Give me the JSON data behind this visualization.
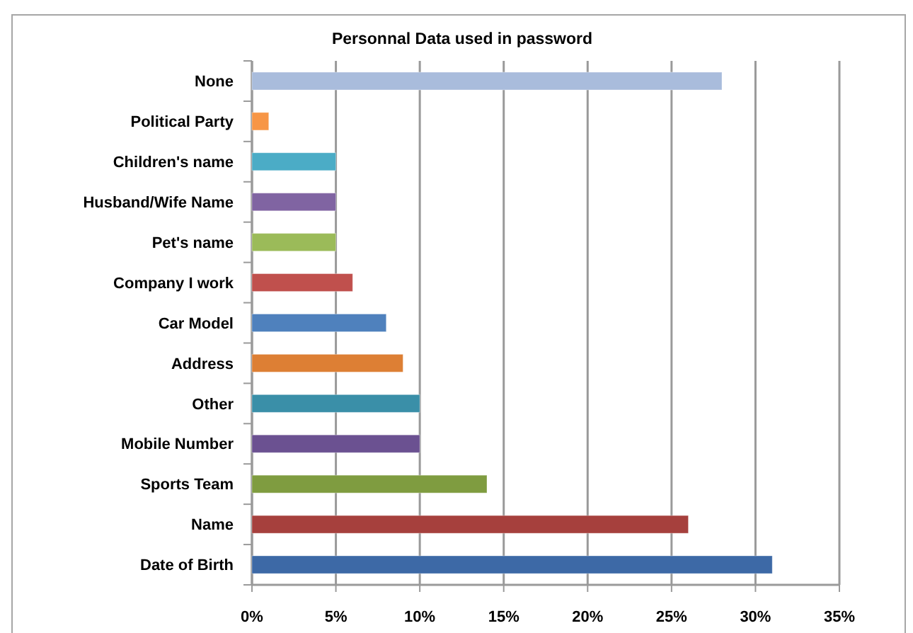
{
  "chart_data": {
    "type": "bar",
    "orientation": "horizontal",
    "title": "Personnal Data used in password",
    "categories": [
      "None",
      "Political Party",
      "Children's name",
      "Husband/Wife Name",
      "Pet's name",
      "Company I work",
      "Car Model",
      "Address",
      "Other",
      "Mobile Number",
      "Sports Team",
      "Name",
      "Date of Birth"
    ],
    "values": [
      28,
      1,
      5,
      5,
      5,
      6,
      8,
      9,
      10,
      10,
      14,
      26,
      31
    ],
    "colors": [
      "#a9bcdc",
      "#f79646",
      "#4bacc6",
      "#8064a2",
      "#9bbb59",
      "#c0504d",
      "#4f81bd",
      "#dd7f34",
      "#3a8fa8",
      "#6b5191",
      "#7f9c40",
      "#a6403d",
      "#3d69a6"
    ],
    "xlim": [
      0,
      35
    ],
    "xticks": [
      {
        "value": 0,
        "label": "0%"
      },
      {
        "value": 5,
        "label": "5%"
      },
      {
        "value": 10,
        "label": "10%"
      },
      {
        "value": 15,
        "label": "15%"
      },
      {
        "value": 20,
        "label": "20%"
      },
      {
        "value": 25,
        "label": "25%"
      },
      {
        "value": 30,
        "label": "30%"
      },
      {
        "value": 35,
        "label": "35%"
      }
    ],
    "grid": "x"
  }
}
